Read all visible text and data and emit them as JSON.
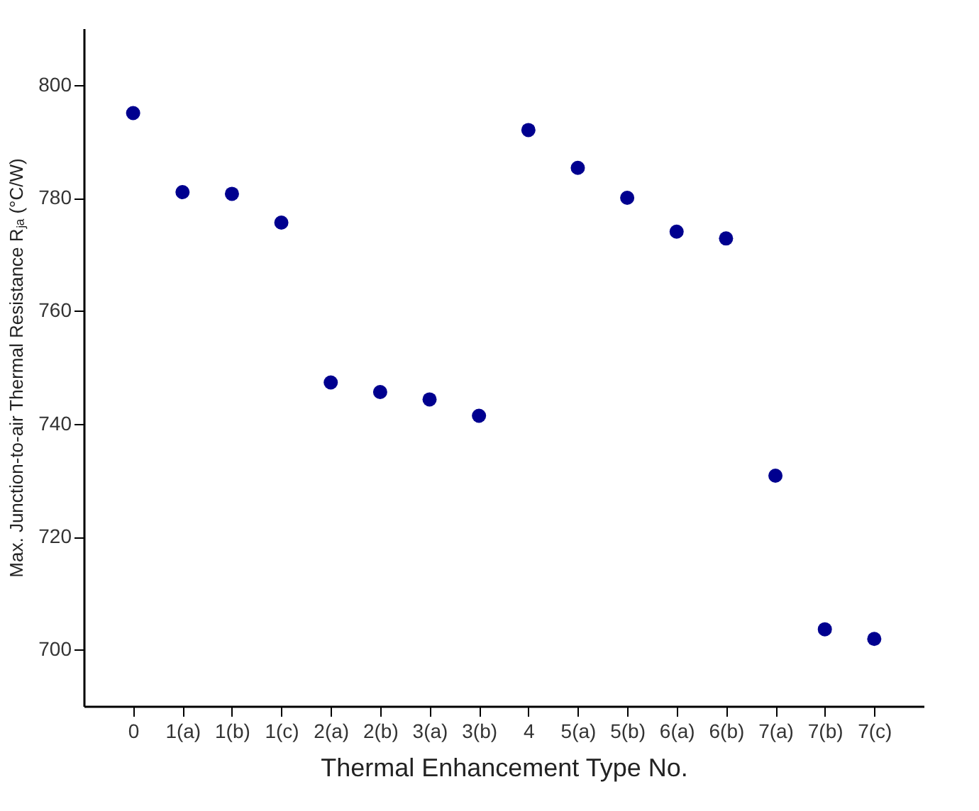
{
  "chart_data": {
    "type": "scatter",
    "xlabel": "Thermal Enhancement Type No.",
    "ylabel": "Max. Junction-to-air Thermal Resistance Rⱼₐ (°C/W)",
    "categories": [
      "0",
      "1(a)",
      "1(b)",
      "1(c)",
      "2(a)",
      "2(b)",
      "3(a)",
      "3(b)",
      "4",
      "5(a)",
      "5(b)",
      "6(a)",
      "6(b)",
      "7(a)",
      "7(b)",
      "7(c)"
    ],
    "series": [
      {
        "color": "#00008f",
        "values": [
          795,
          781,
          780.7,
          775.6,
          747.3,
          745.6,
          744.3,
          741.4,
          792,
          785.3,
          780,
          774,
          772.8,
          730.8,
          703.6,
          701.9
        ]
      }
    ],
    "ylim": [
      690,
      810
    ],
    "yticks": [
      700,
      720,
      740,
      760,
      780,
      800
    ],
    "grid": false
  }
}
